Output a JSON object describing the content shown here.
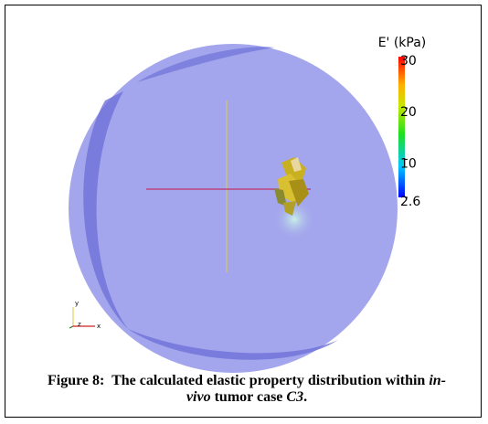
{
  "colorbar": {
    "title": "E' (kPa)",
    "range": [
      2.6,
      30
    ],
    "ticks": [
      30,
      20,
      10,
      2.6
    ]
  },
  "render": {
    "axes": [
      "y",
      "z",
      "x"
    ]
  },
  "caption": {
    "label": "Figure 8:",
    "parts": [
      "The calculated elastic property distribution within ",
      "in-vivo",
      " tumor case ",
      "C3",
      "."
    ]
  }
}
